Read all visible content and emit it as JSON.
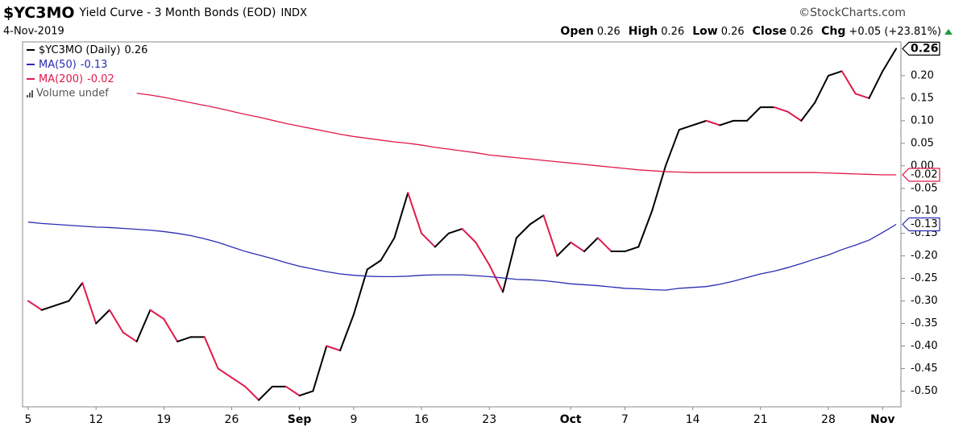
{
  "chart_data": {
    "type": "line",
    "header": {
      "symbol": "$YC3MO",
      "name": "Yield Curve - 3 Month Bonds (EOD)",
      "exchange": "INDX",
      "source": "©StockCharts.com",
      "date": "4-Nov-2019"
    },
    "ohlc": [
      {
        "label": "Open",
        "value": 0.26
      },
      {
        "label": "High",
        "value": 0.26
      },
      {
        "label": "Low",
        "value": 0.26
      },
      {
        "label": "Close",
        "value": 0.26
      },
      {
        "label": "Chg",
        "value": "+0.05 (+23.81%)"
      }
    ],
    "volume_legend": "Volume undef",
    "categories": [
      "5",
      null,
      null,
      null,
      null,
      "12",
      null,
      null,
      null,
      null,
      "19",
      null,
      null,
      null,
      null,
      "26",
      null,
      null,
      null,
      null,
      "Sep",
      null,
      null,
      null,
      "9",
      null,
      null,
      null,
      null,
      "16",
      null,
      null,
      null,
      null,
      "23",
      null,
      null,
      null,
      null,
      null,
      "Oct",
      null,
      null,
      null,
      "7",
      null,
      null,
      null,
      null,
      "14",
      null,
      null,
      null,
      null,
      "21",
      null,
      null,
      null,
      null,
      "28",
      null,
      null,
      null,
      "Nov",
      null
    ],
    "series": [
      {
        "name": "$YC3MO (Daily)",
        "color": "#000000",
        "down_color": "#e0194b",
        "values": [
          -0.3,
          -0.32,
          -0.31,
          -0.3,
          -0.26,
          -0.35,
          -0.32,
          -0.37,
          -0.39,
          -0.32,
          -0.34,
          -0.39,
          -0.38,
          -0.38,
          -0.45,
          -0.47,
          -0.49,
          -0.52,
          -0.49,
          -0.49,
          -0.51,
          -0.5,
          -0.4,
          -0.41,
          -0.33,
          -0.23,
          -0.21,
          -0.16,
          -0.06,
          -0.15,
          -0.18,
          -0.15,
          -0.14,
          -0.17,
          -0.22,
          -0.28,
          -0.16,
          -0.13,
          -0.11,
          -0.2,
          -0.17,
          -0.19,
          -0.16,
          -0.19,
          -0.19,
          -0.18,
          -0.1,
          0,
          0.08,
          0.09,
          0.1,
          0.09,
          0.1,
          0.1,
          0.13,
          0.13,
          0.12,
          0.1,
          0.14,
          0.2,
          0.21,
          0.16,
          0.15,
          0.21,
          0.26
        ]
      },
      {
        "name": "MA(50)",
        "color": "#2b2bb3",
        "values": [
          -0.125,
          -0.128,
          -0.13,
          -0.132,
          -0.134,
          -0.136,
          -0.137,
          -0.139,
          -0.141,
          -0.143,
          -0.146,
          -0.15,
          -0.155,
          -0.162,
          -0.17,
          -0.18,
          -0.19,
          -0.198,
          -0.206,
          -0.215,
          -0.223,
          -0.229,
          -0.235,
          -0.24,
          -0.243,
          -0.245,
          -0.246,
          -0.246,
          -0.245,
          -0.243,
          -0.242,
          -0.242,
          -0.242,
          -0.244,
          -0.246,
          -0.249,
          -0.252,
          -0.253,
          -0.255,
          -0.258,
          -0.262,
          -0.264,
          -0.266,
          -0.269,
          -0.272,
          -0.273,
          -0.275,
          -0.276,
          -0.272,
          -0.27,
          -0.268,
          -0.263,
          -0.256,
          -0.248,
          -0.24,
          -0.234,
          -0.226,
          -0.217,
          -0.207,
          -0.198,
          -0.186,
          -0.176,
          -0.165,
          -0.148,
          -0.13
        ]
      },
      {
        "name": "MA(200)",
        "color": "#e0194b",
        "values": [
          null,
          null,
          null,
          null,
          null,
          null,
          null,
          null,
          0.161,
          0.157,
          0.152,
          0.146,
          0.14,
          0.134,
          0.128,
          0.121,
          0.114,
          0.108,
          0.101,
          0.094,
          0.088,
          0.082,
          0.076,
          0.07,
          0.065,
          0.061,
          0.057,
          0.053,
          0.05,
          0.046,
          0.041,
          0.037,
          0.033,
          0.029,
          0.024,
          0.021,
          0.018,
          0.015,
          0.012,
          0.009,
          0.006,
          0.003,
          0,
          -0.003,
          -0.006,
          -0.009,
          -0.011,
          -0.013,
          -0.014,
          -0.015,
          -0.015,
          -0.015,
          -0.015,
          -0.015,
          -0.015,
          -0.015,
          -0.015,
          -0.015,
          -0.015,
          -0.016,
          -0.017,
          -0.018,
          -0.019,
          -0.02,
          -0.02
        ]
      }
    ],
    "ylim": [
      -0.535,
      0.275
    ],
    "yticks": [
      {
        "value": 0.2,
        "label": "0.20"
      },
      {
        "value": 0.15,
        "label": "0.15"
      },
      {
        "value": 0.1,
        "label": "0.10"
      },
      {
        "value": 0.05,
        "label": "0.05"
      },
      {
        "value": 0,
        "label": "0.00"
      },
      {
        "value": -0.05,
        "label": "-0.05"
      },
      {
        "value": -0.1,
        "label": "-0.10"
      },
      {
        "value": -0.15,
        "label": "-0.15"
      },
      {
        "value": -0.2,
        "label": "-0.20"
      },
      {
        "value": -0.25,
        "label": "-0.25"
      },
      {
        "value": -0.3,
        "label": "-0.30"
      },
      {
        "value": -0.35,
        "label": "-0.35"
      },
      {
        "value": -0.4,
        "label": "-0.40"
      },
      {
        "value": -0.45,
        "label": "-0.45"
      },
      {
        "value": -0.5,
        "label": "-0.50"
      }
    ],
    "grid": false
  }
}
